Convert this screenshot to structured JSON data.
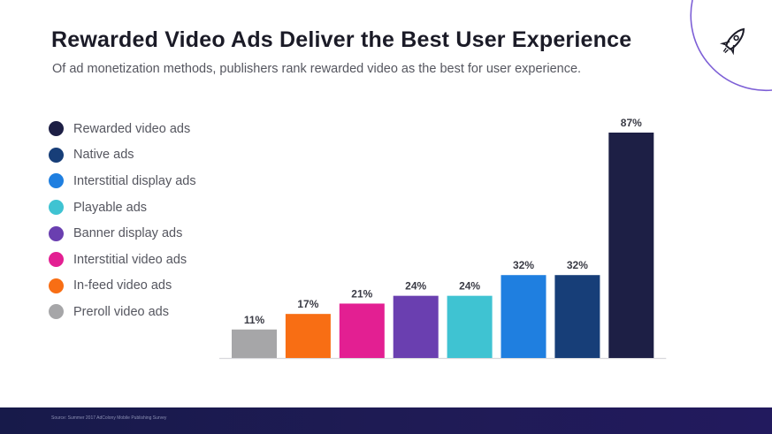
{
  "title": "Rewarded Video Ads Deliver the Best User Experience",
  "subtitle": "Of ad monetization methods, publishers rank rewarded video as the best for user experience.",
  "logo_icon": "rocket-icon",
  "footer": {
    "source": "Source: Summer 2017 AdColony Mobile Publishing Survey"
  },
  "legend": [
    {
      "label": "Rewarded video ads",
      "color": "#1d1f45"
    },
    {
      "label": "Native ads",
      "color": "#173e78"
    },
    {
      "label": "Interstitial display ads",
      "color": "#1f7fe0"
    },
    {
      "label": "Playable ads",
      "color": "#3fc3d2"
    },
    {
      "label": "Banner display ads",
      "color": "#6a3fb0"
    },
    {
      "label": "Interstitial video ads",
      "color": "#e31f92"
    },
    {
      "label": "In-feed video ads",
      "color": "#f86e14"
    },
    {
      "label": "Preroll video ads",
      "color": "#a6a6a8"
    }
  ],
  "chart_data": {
    "type": "bar",
    "categories": [
      "Preroll video ads",
      "In-feed video ads",
      "Interstitial video ads",
      "Banner display ads",
      "Playable ads",
      "Interstitial display ads",
      "Native ads",
      "Rewarded video ads"
    ],
    "values": [
      11,
      17,
      21,
      24,
      24,
      32,
      32,
      87
    ],
    "data_labels": [
      "11%",
      "17%",
      "21%",
      "24%",
      "24%",
      "32%",
      "32%",
      "87%"
    ],
    "colors": [
      "#a6a6a8",
      "#f86e14",
      "#e31f92",
      "#6a3fb0",
      "#3fc3d2",
      "#1f7fe0",
      "#173e78",
      "#1d1f45"
    ],
    "ylim": [
      0,
      100
    ],
    "grid": false,
    "legend_position": "left"
  }
}
